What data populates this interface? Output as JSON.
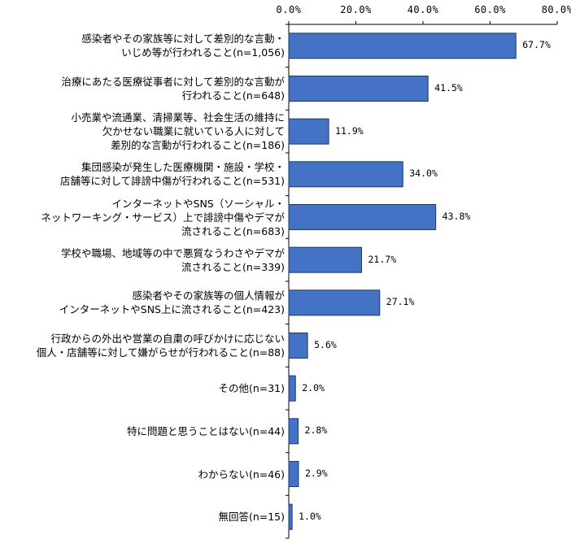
{
  "chart_data": {
    "type": "bar",
    "orientation": "horizontal",
    "xlim": [
      0,
      80
    ],
    "ticks": [
      "0.0%",
      "20.0%",
      "40.0%",
      "60.0%",
      "80.0%"
    ],
    "tick_values": [
      0,
      20,
      40,
      60,
      80
    ],
    "grid": false,
    "bar_color": "#4472C4",
    "bar_border_color": "#1F3864",
    "categories": [
      "感染者やその家族等に対して差別的な言動・\nいじめ等が行われること(n=1,056)",
      "治療にあたる医療従事者に対して差別的な言動が\n行われること(n=648)",
      "小売業や流通業、清掃業等、社会生活の維持に\n欠かせない職業に就いている人に対して\n差別的な言動が行われること(n=186)",
      "集団感染が発生した医療機関・施設・学校・\n店舗等に対して誹謗中傷が行われること(n=531)",
      "インターネットやSNS（ソーシャル・\nネットワーキング・サービス）上で誹謗中傷やデマが\n流されること(n=683)",
      "学校や職場、地域等の中で悪質なうわさやデマが\n流されること(n=339)",
      "感染者やその家族等の個人情報が\nインターネットやSNS上に流されること(n=423)",
      "行政からの外出や営業の自粛の呼びかけに応じない\n個人・店舗等に対して嫌がらせが行われること(n=88)",
      "その他(n=31)",
      "特に問題と思うことはない(n=44)",
      "わからない(n=46)",
      "無回答(n=15)"
    ],
    "values": [
      67.7,
      41.5,
      11.9,
      34.0,
      43.8,
      21.7,
      27.1,
      5.6,
      2.0,
      2.8,
      2.9,
      1.0
    ],
    "value_labels": [
      "67.7%",
      "41.5%",
      "11.9%",
      "34.0%",
      "43.8%",
      "21.7%",
      "27.1%",
      "5.6%",
      "2.0%",
      "2.8%",
      "2.9%",
      "1.0%"
    ]
  }
}
